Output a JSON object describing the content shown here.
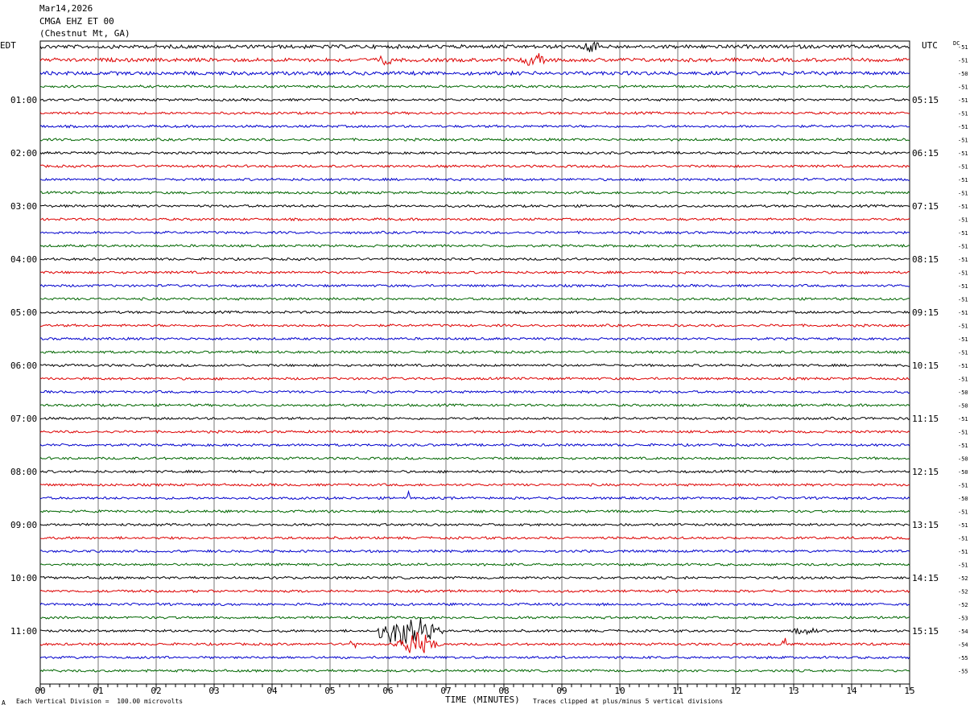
{
  "header": {
    "date": "Mar14,2026",
    "station": "CMGA EHZ ET 00",
    "location": "(Chestnut Mt, GA)"
  },
  "axes": {
    "left_tz": "EDT",
    "right_tz": "UTC",
    "dc_label": "DC",
    "xlabel": "TIME (MINUTES)"
  },
  "footer": {
    "mark": "A",
    "scale_note": "Each Vertical Division =  100.00 microvolts",
    "clip_note": "Traces clipped at plus/minus 5 vertical divisions"
  },
  "chart_data": {
    "type": "line",
    "title": "CMGA EHZ ET 00 (Chestnut Mt, GA) Mar14,2026",
    "xlabel": "TIME (MINUTES)",
    "xlim": [
      0,
      15
    ],
    "x_ticks": [
      "00",
      "01",
      "02",
      "03",
      "04",
      "05",
      "06",
      "07",
      "08",
      "09",
      "10",
      "11",
      "12",
      "13",
      "14",
      "15"
    ],
    "rows_per_hour": 4,
    "row_minutes": 15,
    "trace_colors": [
      "#000000",
      "#dd0000",
      "#0000cc",
      "#006600"
    ],
    "left_labels": [
      "",
      "01:00",
      "02:00",
      "03:00",
      "04:00",
      "05:00",
      "06:00",
      "07:00",
      "08:00",
      "09:00",
      "10:00",
      "11:00"
    ],
    "right_labels": [
      "",
      "05:15",
      "06:15",
      "07:15",
      "08:15",
      "09:15",
      "10:15",
      "11:15",
      "12:15",
      "13:15",
      "14:15",
      "15:15"
    ],
    "dc_offsets": [
      -51,
      -51,
      -50,
      -51,
      -51,
      -51,
      -51,
      -51,
      -51,
      -51,
      -51,
      -51,
      -51,
      -51,
      -51,
      -51,
      -51,
      -51,
      -51,
      -51,
      -51,
      -51,
      -51,
      -51,
      -51,
      -51,
      -50,
      -50,
      -51,
      -51,
      -51,
      -50,
      -50,
      -51,
      -50,
      -51,
      -51,
      -51,
      -51,
      -51,
      -52,
      -52,
      -52,
      -53,
      -54,
      -54,
      -55,
      -55
    ],
    "events": [
      {
        "row": 44,
        "start_min": 5.8,
        "end_min": 7.1,
        "peak_min": 6.35,
        "amplitude": 5
      },
      {
        "row": 45,
        "start_min": 6.1,
        "end_min": 7.0,
        "peak_min": 6.5,
        "amplitude": 3
      },
      {
        "row": 45,
        "start_min": 5.35,
        "end_min": 5.5,
        "peak_min": 5.4,
        "amplitude": 1.5
      },
      {
        "row": 45,
        "start_min": 12.8,
        "end_min": 12.9,
        "peak_min": 12.85,
        "amplitude": 2
      },
      {
        "row": 1,
        "start_min": 5.8,
        "end_min": 6.1,
        "peak_min": 5.95,
        "amplitude": 1.3
      },
      {
        "row": 1,
        "start_min": 8.2,
        "end_min": 8.7,
        "peak_min": 8.5,
        "amplitude": 1.5
      },
      {
        "row": 0,
        "start_min": 9.3,
        "end_min": 9.8,
        "peak_min": 9.5,
        "amplitude": 1.0
      },
      {
        "row": 34,
        "start_min": 6.3,
        "end_min": 6.4,
        "peak_min": 6.35,
        "amplitude": 1.5
      },
      {
        "row": 44,
        "start_min": 13.0,
        "end_min": 13.5,
        "peak_min": 13.2,
        "amplitude": 1.0
      }
    ]
  }
}
